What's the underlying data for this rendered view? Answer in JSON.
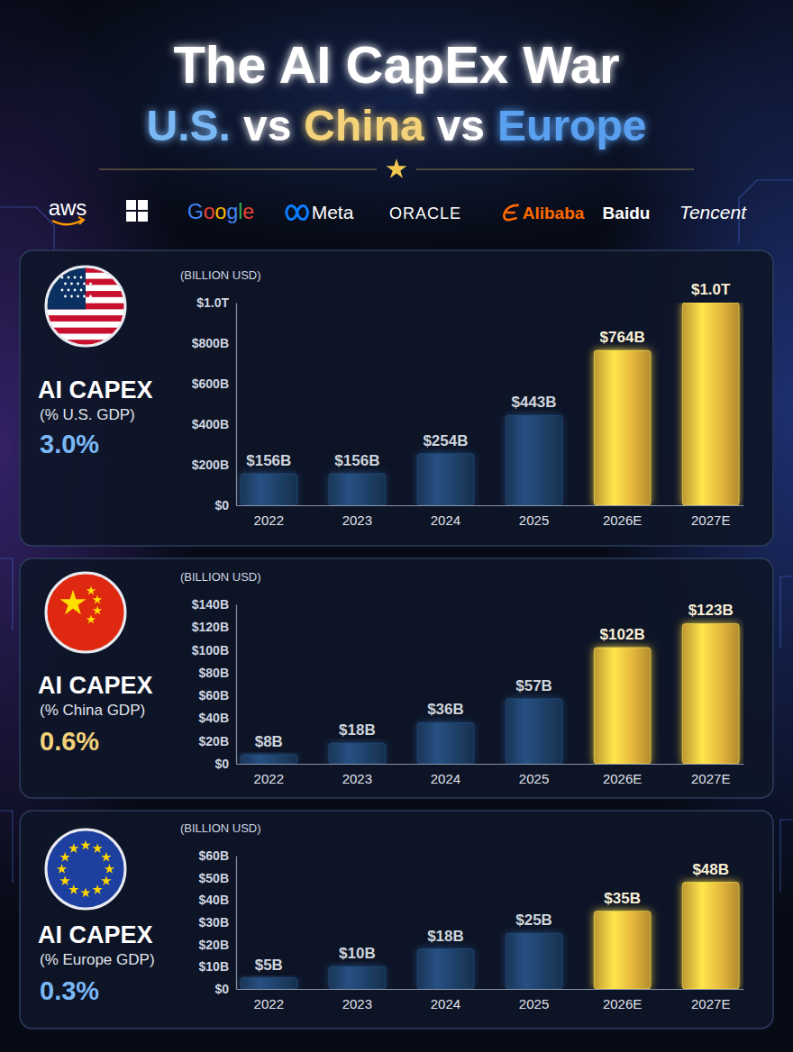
{
  "header": {
    "title": "The AI CapEx War",
    "subtitle": [
      "U.S.",
      "vs",
      "China",
      "vs",
      "Europe"
    ],
    "logos": [
      "aws",
      "Google",
      "Meta",
      "ORACLE",
      "Alibaba",
      "Baidu",
      "Tencent"
    ]
  },
  "chart_data": [
    {
      "type": "bar",
      "title": "AI CAPEX",
      "subtitle": "(% U.S. GDP)",
      "annotation": "3.0%",
      "y_label": "(BILLION USD)",
      "categories": [
        "2022",
        "2023",
        "2024",
        "2025",
        "2026E",
        "2027E"
      ],
      "values": [
        156,
        156,
        254,
        443,
        764,
        1000
      ],
      "value_labels": [
        "$156B",
        "$156B",
        "$254B",
        "$443B",
        "$764B",
        "$1.0T"
      ],
      "colors": [
        "#1e3f66",
        "#1e3f66",
        "#1e3f66",
        "#1e3f66",
        "#e3b43c",
        "#e3b43c"
      ],
      "ylim": [
        0,
        1000
      ],
      "yticks": [
        {
          "value": 0,
          "label": "$0"
        },
        {
          "value": 200,
          "label": "$200B"
        },
        {
          "value": 400,
          "label": "$400B"
        },
        {
          "value": 600,
          "label": "$600B"
        },
        {
          "value": 800,
          "label": "$800B"
        },
        {
          "value": 1000,
          "label": "$1.0T"
        }
      ],
      "grid": false,
      "data_labels": true
    },
    {
      "type": "bar",
      "title": "AI CAPEX",
      "subtitle": "(% China GDP)",
      "annotation": "0.6%",
      "y_label": "(BILLION USD)",
      "categories": [
        "2022",
        "2023",
        "2024",
        "2025",
        "2026E",
        "2027E"
      ],
      "values": [
        8,
        18,
        36,
        57,
        102,
        123
      ],
      "value_labels": [
        "$8B",
        "$18B",
        "$36B",
        "$57B",
        "$102B",
        "$123B"
      ],
      "colors": [
        "#1e3f66",
        "#1e3f66",
        "#1e3f66",
        "#1e3f66",
        "#e3b43c",
        "#e3b43c"
      ],
      "ylim": [
        0,
        140
      ],
      "yticks": [
        {
          "value": 0,
          "label": "$0"
        },
        {
          "value": 20,
          "label": "$20B"
        },
        {
          "value": 40,
          "label": "$40B"
        },
        {
          "value": 60,
          "label": "$60B"
        },
        {
          "value": 80,
          "label": "$80B"
        },
        {
          "value": 100,
          "label": "$100B"
        },
        {
          "value": 120,
          "label": "$120B"
        },
        {
          "value": 140,
          "label": "$140B"
        }
      ],
      "grid": false,
      "data_labels": true
    },
    {
      "type": "bar",
      "title": "AI CAPEX",
      "subtitle": "(% Europe GDP)",
      "annotation": "0.3%",
      "y_label": "(BILLION USD)",
      "categories": [
        "2022",
        "2023",
        "2024",
        "2025",
        "2026E",
        "2027E"
      ],
      "values": [
        5,
        10,
        18,
        25,
        35,
        48
      ],
      "value_labels": [
        "$5B",
        "$10B",
        "$18B",
        "$25B",
        "$35B",
        "$48B"
      ],
      "colors": [
        "#1e3f66",
        "#1e3f66",
        "#1e3f66",
        "#1e3f66",
        "#e3b43c",
        "#e3b43c"
      ],
      "ylim": [
        0,
        60
      ],
      "yticks": [
        {
          "value": 0,
          "label": "$0"
        },
        {
          "value": 10,
          "label": "$10B"
        },
        {
          "value": 20,
          "label": "$20B"
        },
        {
          "value": 30,
          "label": "$30B"
        },
        {
          "value": 40,
          "label": "$40B"
        },
        {
          "value": 50,
          "label": "$50B"
        },
        {
          "value": 60,
          "label": "$60B"
        }
      ],
      "grid": false,
      "data_labels": true
    }
  ]
}
